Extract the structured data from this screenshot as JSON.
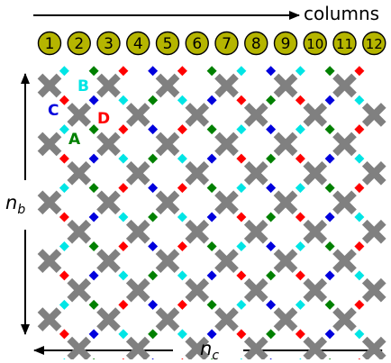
{
  "title": "columns",
  "columns": [
    "1",
    "2",
    "3",
    "4",
    "5",
    "6",
    "7",
    "8",
    "9",
    "10",
    "11",
    "12"
  ],
  "axis_rows": {
    "symbol": "n",
    "subscript": "b"
  },
  "axis_cols": {
    "symbol": "n",
    "subscript": "c"
  },
  "site_labels": [
    {
      "text": "A",
      "color": "#008000"
    },
    {
      "text": "B",
      "color": "#00e5e5"
    },
    {
      "text": "C",
      "color": "#0000dd"
    },
    {
      "text": "D",
      "color": "#ff0000"
    }
  ],
  "colors": {
    "cross": "#808080",
    "column_circle_fill": "#b5b500",
    "column_circle_stroke": "#000000",
    "A": "#008000",
    "B": "#00e5e5",
    "C": "#0000dd",
    "D": "#ff0000"
  },
  "lattice": {
    "cross_rows": 10,
    "cross_cols": 12,
    "site_pattern": [
      [
        "C",
        "B",
        "A",
        "D",
        "C",
        "D",
        "A",
        "B",
        "C",
        "B",
        "A",
        "D",
        "C"
      ],
      [
        "A",
        "D",
        "C",
        "B",
        "A",
        "B",
        "C",
        "D",
        "A",
        "D",
        "C",
        "B",
        "A"
      ],
      [
        "C",
        "B",
        "A",
        "D",
        "C",
        "D",
        "A",
        "B",
        "C",
        "B",
        "A",
        "D",
        "C"
      ],
      [
        "A",
        "D",
        "C",
        "B",
        "A",
        "B",
        "C",
        "D",
        "A",
        "D",
        "C",
        "B",
        "A"
      ],
      [
        "C",
        "B",
        "A",
        "D",
        "C",
        "D",
        "A",
        "B",
        "C",
        "B",
        "A",
        "D",
        "C"
      ],
      [
        "A",
        "D",
        "C",
        "B",
        "A",
        "B",
        "C",
        "D",
        "A",
        "D",
        "C",
        "B",
        "A"
      ],
      [
        "C",
        "B",
        "A",
        "D",
        "C",
        "D",
        "A",
        "B",
        "C",
        "B",
        "A",
        "D",
        "C"
      ],
      [
        "A",
        "D",
        "C",
        "B",
        "A",
        "B",
        "C",
        "D",
        "A",
        "D",
        "C",
        "B",
        "A"
      ],
      [
        "C",
        "B",
        "A",
        "D",
        "C",
        "D",
        "A",
        "B",
        "C",
        "B",
        "A",
        "D",
        "C"
      ],
      [
        "A",
        "D",
        "C",
        "B",
        "A",
        "B",
        "C",
        "D",
        "A",
        "D",
        "C",
        "B",
        "A"
      ],
      [
        "C",
        "B",
        "A",
        "D",
        "C",
        "D",
        "A",
        "B",
        "C",
        "B",
        "A",
        "D",
        "C"
      ]
    ]
  }
}
